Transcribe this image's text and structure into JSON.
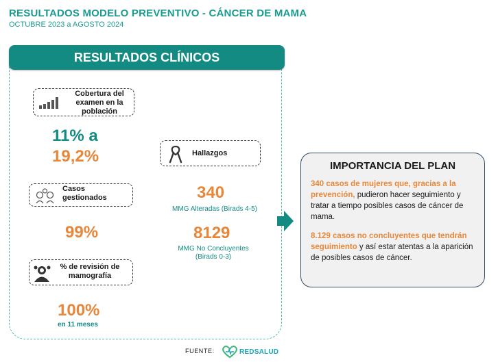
{
  "header": {
    "title": "RESULTADOS MODELO PREVENTIVO - CÁNCER DE MAMA",
    "subtitle": "OCTUBRE 2023 a AGOSTO 2024"
  },
  "clinical": {
    "title": "RESULTADOS CLÍNICOS",
    "coverage": {
      "label": "Cobertura del examen en la población",
      "value_low": "11% a",
      "value_high": "19,2%"
    },
    "cases": {
      "label": "Casos gestionados",
      "value": "99%"
    },
    "review": {
      "label": "% de revisión de mamografía",
      "value": "100%",
      "note": "en 11 meses"
    },
    "findings": {
      "label": "Hallazgos",
      "altered_value": "340",
      "altered_label": "MMG Alteradas (Birads 4-5)",
      "inconclusive_value": "8129",
      "inconclusive_label_1": "MMG No Concluyentes",
      "inconclusive_label_2": "(Birads 0-3)"
    }
  },
  "plan": {
    "title": "IMPORTANCIA DEL PLAN",
    "p1_highlight": "340 casos de mujeres que, gracias a la prevención,",
    "p1_rest": " pudieron hacer seguimiento y tratar a tiempo posibles casos de cáncer de mama.",
    "p2_highlight": "8.129 casos no concluyentes que tendrán seguimiento",
    "p2_rest": " y así estar atentas a la aparición de posibles casos de cáncer."
  },
  "footer": {
    "source_label": "FUENTE:",
    "logo_text": "REDSALUD"
  },
  "colors": {
    "teal": "#138b83",
    "orange": "#e8873a",
    "navy": "#2f4a63"
  }
}
